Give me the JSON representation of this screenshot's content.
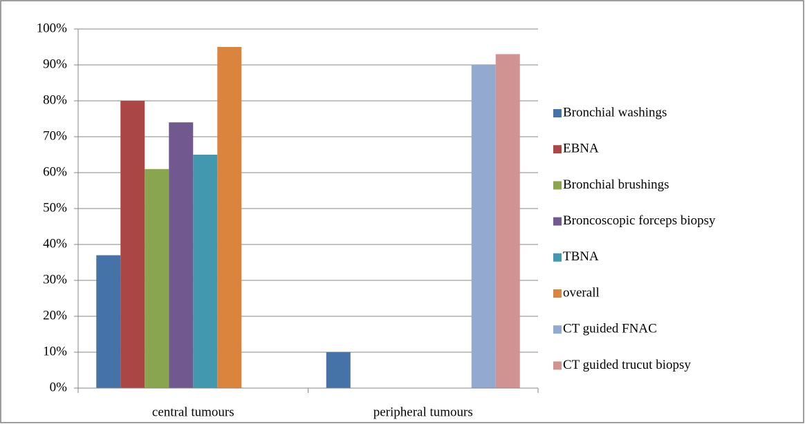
{
  "chart_data": {
    "type": "bar",
    "categories": [
      "central tumours",
      "peripheral tumours"
    ],
    "series": [
      {
        "name": "Bronchial washings",
        "color": "#4572A7",
        "values": [
          37,
          10
        ]
      },
      {
        "name": "EBNA",
        "color": "#AA4643",
        "values": [
          80,
          null
        ]
      },
      {
        "name": "Bronchial brushings",
        "color": "#89A54E",
        "values": [
          61,
          null
        ]
      },
      {
        "name": "Broncoscopic forceps biopsy",
        "color": "#71588F",
        "values": [
          74,
          null
        ]
      },
      {
        "name": "TBNA",
        "color": "#4198AF",
        "values": [
          65,
          null
        ]
      },
      {
        "name": "overall",
        "color": "#DB843D",
        "values": [
          95,
          null
        ]
      },
      {
        "name": "CT guided FNAC",
        "color": "#93A9CF",
        "values": [
          null,
          90
        ]
      },
      {
        "name": "CT guided trucut biopsy",
        "color": "#D19392",
        "values": [
          null,
          93
        ]
      }
    ],
    "ylim": [
      0,
      100
    ],
    "yticks": [
      {
        "value": 0,
        "label": "0%"
      },
      {
        "value": 10,
        "label": "10%"
      },
      {
        "value": 20,
        "label": "20%"
      },
      {
        "value": 30,
        "label": "30%"
      },
      {
        "value": 40,
        "label": "40%"
      },
      {
        "value": 50,
        "label": "50%"
      },
      {
        "value": 60,
        "label": "60%"
      },
      {
        "value": 70,
        "label": "70%"
      },
      {
        "value": 80,
        "label": "80%"
      },
      {
        "value": 90,
        "label": "90%"
      },
      {
        "value": 100,
        "label": "100%"
      }
    ],
    "grid": true,
    "legend": "right"
  }
}
